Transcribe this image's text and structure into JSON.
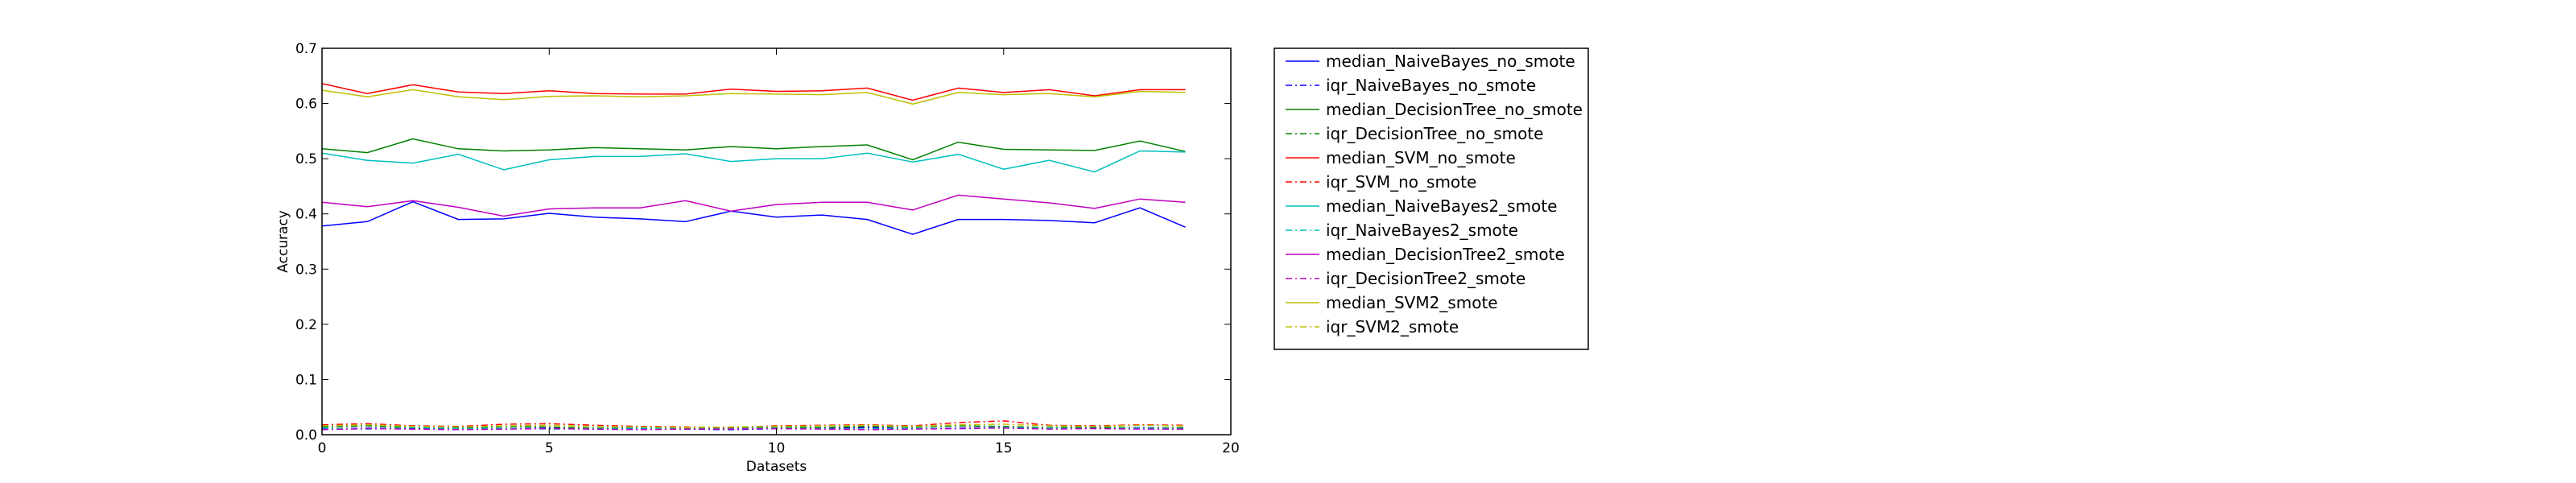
{
  "chart_data": {
    "type": "line",
    "title": "",
    "xlabel": "Datasets",
    "ylabel": "Accuracy",
    "xlim": [
      0,
      20
    ],
    "ylim": [
      0,
      0.7
    ],
    "xticks": [
      "0",
      "5",
      "10",
      "15",
      "20"
    ],
    "yticks": [
      "0.0",
      "0.1",
      "0.2",
      "0.3",
      "0.4",
      "0.5",
      "0.6",
      "0.7"
    ],
    "grid": false,
    "legend_position": "outside-right",
    "x": [
      0,
      1,
      2,
      3,
      4,
      5,
      6,
      7,
      8,
      9,
      10,
      11,
      12,
      13,
      14,
      15,
      16,
      17,
      18,
      19
    ],
    "series": [
      {
        "name": "median_NaiveBayes_no_smote",
        "color": "#0000ff",
        "dash": "solid",
        "values": [
          0.378,
          0.386,
          0.422,
          0.39,
          0.391,
          0.401,
          0.394,
          0.391,
          0.386,
          0.405,
          0.394,
          0.398,
          0.39,
          0.363,
          0.39,
          0.39,
          0.388,
          0.384,
          0.411,
          0.376
        ]
      },
      {
        "name": "iqr_NaiveBayes_no_smote",
        "color": "#0000ff",
        "dash": "dashdot",
        "values": [
          0.01,
          0.012,
          0.011,
          0.01,
          0.011,
          0.012,
          0.01,
          0.011,
          0.01,
          0.009,
          0.011,
          0.012,
          0.013,
          0.011,
          0.012,
          0.013,
          0.011,
          0.012,
          0.013,
          0.012
        ]
      },
      {
        "name": "median_DecisionTree_no_smote",
        "color": "#008000",
        "dash": "solid",
        "values": [
          0.518,
          0.511,
          0.536,
          0.518,
          0.514,
          0.516,
          0.52,
          0.518,
          0.516,
          0.522,
          0.518,
          0.522,
          0.525,
          0.498,
          0.53,
          0.517,
          0.516,
          0.515,
          0.532,
          0.513
        ]
      },
      {
        "name": "iqr_DecisionTree_no_smote",
        "color": "#008000",
        "dash": "dashdot",
        "values": [
          0.014,
          0.016,
          0.013,
          0.012,
          0.015,
          0.014,
          0.012,
          0.013,
          0.011,
          0.012,
          0.014,
          0.013,
          0.015,
          0.014,
          0.016,
          0.015,
          0.013,
          0.014,
          0.012,
          0.013
        ]
      },
      {
        "name": "median_SVM_no_smote",
        "color": "#ff0000",
        "dash": "solid",
        "values": [
          0.636,
          0.618,
          0.634,
          0.621,
          0.618,
          0.623,
          0.618,
          0.617,
          0.617,
          0.626,
          0.622,
          0.623,
          0.628,
          0.606,
          0.628,
          0.62,
          0.625,
          0.614,
          0.625,
          0.625
        ]
      },
      {
        "name": "iqr_SVM_no_smote",
        "color": "#ff0000",
        "dash": "dashdot",
        "values": [
          0.018,
          0.02,
          0.016,
          0.015,
          0.019,
          0.02,
          0.017,
          0.015,
          0.014,
          0.013,
          0.016,
          0.017,
          0.018,
          0.016,
          0.022,
          0.025,
          0.017,
          0.016,
          0.018,
          0.017
        ]
      },
      {
        "name": "median_NaiveBayes2_smote",
        "color": "#00bfbf",
        "dash": "solid",
        "values": [
          0.51,
          0.497,
          0.492,
          0.508,
          0.48,
          0.498,
          0.504,
          0.504,
          0.509,
          0.495,
          0.5,
          0.5,
          0.51,
          0.494,
          0.508,
          0.481,
          0.497,
          0.476,
          0.514,
          0.512
        ]
      },
      {
        "name": "iqr_NaiveBayes2_smote",
        "color": "#00bfbf",
        "dash": "dashdot",
        "values": [
          0.012,
          0.01,
          0.013,
          0.011,
          0.012,
          0.01,
          0.011,
          0.012,
          0.01,
          0.011,
          0.012,
          0.011,
          0.01,
          0.012,
          0.011,
          0.013,
          0.012,
          0.011,
          0.012,
          0.011
        ]
      },
      {
        "name": "median_DecisionTree2_smote",
        "color": "#bf00bf",
        "dash": "solid",
        "values": [
          0.421,
          0.413,
          0.424,
          0.412,
          0.396,
          0.409,
          0.411,
          0.411,
          0.424,
          0.405,
          0.417,
          0.421,
          0.421,
          0.407,
          0.434,
          0.427,
          0.42,
          0.41,
          0.427,
          0.421
        ]
      },
      {
        "name": "iqr_DecisionTree2_smote",
        "color": "#bf00bf",
        "dash": "dashdot",
        "values": [
          0.009,
          0.011,
          0.01,
          0.009,
          0.01,
          0.011,
          0.01,
          0.009,
          0.01,
          0.01,
          0.011,
          0.01,
          0.009,
          0.01,
          0.011,
          0.012,
          0.01,
          0.011,
          0.01,
          0.01
        ]
      },
      {
        "name": "median_SVM2_smote",
        "color": "#bfbf00",
        "dash": "solid",
        "values": [
          0.624,
          0.612,
          0.625,
          0.612,
          0.607,
          0.613,
          0.614,
          0.612,
          0.614,
          0.618,
          0.617,
          0.616,
          0.62,
          0.599,
          0.62,
          0.616,
          0.618,
          0.612,
          0.622,
          0.62
        ]
      },
      {
        "name": "iqr_SVM2_smote",
        "color": "#bfbf00",
        "dash": "dashdot",
        "values": [
          0.016,
          0.018,
          0.015,
          0.014,
          0.016,
          0.017,
          0.015,
          0.014,
          0.013,
          0.014,
          0.015,
          0.016,
          0.017,
          0.015,
          0.018,
          0.019,
          0.016,
          0.015,
          0.017,
          0.016
        ]
      }
    ]
  }
}
